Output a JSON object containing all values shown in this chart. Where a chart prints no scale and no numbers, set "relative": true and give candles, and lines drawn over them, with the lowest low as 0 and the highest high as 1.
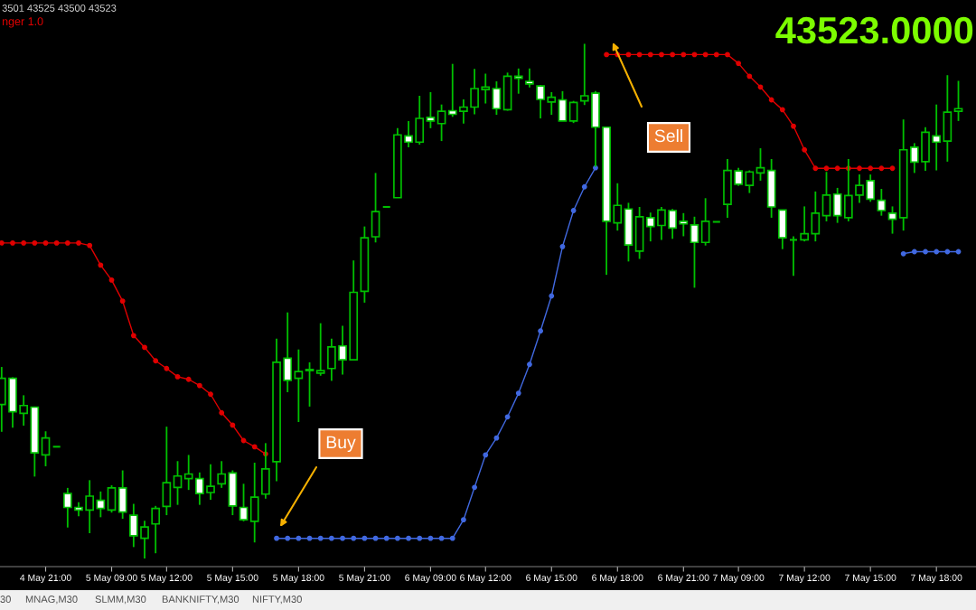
{
  "chart_data": {
    "type": "candlestick",
    "title": "3501 43525 43500 43523",
    "subtitle": "nger 1.0",
    "relative": true,
    "grid": false,
    "legend": false,
    "annotations": [
      "43523.0000",
      "Buy",
      "Sell",
      "30",
      "MNAG,M30",
      "SLMM,M30",
      "BANKNIFTY,M30",
      "NIFTY,M30"
    ],
    "categories": [
      null,
      null,
      null,
      null,
      "4 May 21:00",
      null,
      null,
      null,
      null,
      null,
      "5 May 09:00",
      null,
      null,
      null,
      null,
      "5 May 12:00",
      null,
      null,
      null,
      null,
      null,
      "5 May 15:00",
      null,
      null,
      null,
      null,
      null,
      "5 May 18:00",
      null,
      null,
      null,
      null,
      null,
      "5 May 21:00",
      null,
      null,
      null,
      null,
      null,
      "6 May 09:00",
      null,
      null,
      null,
      null,
      "6 May 12:00",
      null,
      null,
      null,
      null,
      null,
      "6 May 15:00",
      null,
      null,
      null,
      null,
      null,
      "6 May 18:00",
      null,
      null,
      null,
      null,
      null,
      "6 May 21:00",
      null,
      null,
      null,
      null,
      "7 May 09:00",
      null,
      null,
      null,
      null,
      null,
      "7 May 12:00",
      null,
      null,
      null,
      null,
      null,
      "7 May 15:00",
      null,
      null,
      null,
      null,
      null,
      "7 May 18:00",
      null,
      null
    ],
    "ohlc": [
      [
        0.299,
        0.372,
        0.246,
        0.35
      ],
      [
        0.35,
        0.352,
        0.254,
        0.285
      ],
      [
        0.282,
        0.317,
        0.258,
        0.297
      ],
      [
        0.294,
        0.295,
        0.159,
        0.205
      ],
      [
        0.201,
        0.247,
        0.179,
        0.234
      ],
      [
        0.217,
        0.217,
        0.217,
        0.217
      ],
      [
        0.126,
        0.137,
        0.06,
        0.099
      ],
      [
        0.099,
        0.109,
        0.082,
        0.094
      ],
      [
        0.094,
        0.152,
        0.049,
        0.121
      ],
      [
        0.113,
        0.13,
        0.08,
        0.097
      ],
      [
        0.094,
        0.142,
        0.089,
        0.137
      ],
      [
        0.137,
        0.171,
        0.077,
        0.09
      ],
      [
        0.084,
        0.106,
        0.022,
        0.044
      ],
      [
        0.039,
        0.073,
        0.0,
        0.061
      ],
      [
        0.067,
        0.102,
        0.01,
        0.097
      ],
      [
        0.101,
        0.256,
        0.084,
        0.147
      ],
      [
        0.138,
        0.189,
        0.104,
        0.16
      ],
      [
        0.155,
        0.201,
        0.133,
        0.164
      ],
      [
        0.155,
        0.167,
        0.104,
        0.126
      ],
      [
        0.128,
        0.183,
        0.114,
        0.14
      ],
      [
        0.145,
        0.189,
        0.137,
        0.164
      ],
      [
        0.166,
        0.171,
        0.084,
        0.102
      ],
      [
        0.099,
        0.145,
        0.072,
        0.075
      ],
      [
        0.072,
        0.186,
        0.031,
        0.119
      ],
      [
        0.125,
        0.224,
        0.116,
        0.174
      ],
      [
        0.188,
        0.427,
        0.15,
        0.381
      ],
      [
        0.389,
        0.478,
        0.323,
        0.346
      ],
      [
        0.35,
        0.406,
        0.265,
        0.363
      ],
      [
        0.367,
        0.381,
        0.295,
        0.365
      ],
      [
        0.36,
        0.457,
        0.355,
        0.365
      ],
      [
        0.369,
        0.427,
        0.345,
        0.411
      ],
      [
        0.413,
        0.452,
        0.357,
        0.386
      ],
      [
        0.386,
        0.579,
        0.386,
        0.517
      ],
      [
        0.519,
        0.645,
        0.497,
        0.623
      ],
      [
        0.625,
        0.749,
        0.614,
        0.674
      ],
      [
        0.683,
        0.683,
        0.683,
        0.683
      ],
      [
        0.701,
        0.836,
        0.701,
        0.823
      ],
      [
        0.821,
        0.85,
        0.799,
        0.809
      ],
      [
        0.809,
        0.899,
        0.804,
        0.855
      ],
      [
        0.857,
        0.906,
        0.836,
        0.85
      ],
      [
        0.845,
        0.882,
        0.811,
        0.869
      ],
      [
        0.87,
        0.961,
        0.858,
        0.863
      ],
      [
        0.869,
        0.892,
        0.845,
        0.877
      ],
      [
        0.877,
        0.951,
        0.863,
        0.913
      ],
      [
        0.911,
        0.942,
        0.884,
        0.916
      ],
      [
        0.913,
        0.927,
        0.862,
        0.874
      ],
      [
        0.872,
        0.944,
        0.87,
        0.937
      ],
      [
        0.937,
        0.952,
        0.903,
        0.933
      ],
      [
        0.927,
        0.952,
        0.915,
        0.922
      ],
      [
        0.918,
        0.92,
        0.855,
        0.892
      ],
      [
        0.887,
        0.906,
        0.862,
        0.896
      ],
      [
        0.891,
        0.908,
        0.85,
        0.85
      ],
      [
        0.85,
        0.889,
        0.846,
        0.886
      ],
      [
        0.889,
        1.0,
        0.881,
        0.899
      ],
      [
        0.904,
        0.908,
        0.761,
        0.838
      ],
      [
        0.838,
        0.838,
        0.551,
        0.655
      ],
      [
        0.652,
        0.729,
        0.637,
        0.686
      ],
      [
        0.679,
        0.691,
        0.577,
        0.609
      ],
      [
        0.597,
        0.683,
        0.582,
        0.664
      ],
      [
        0.662,
        0.672,
        0.616,
        0.645
      ],
      [
        0.647,
        0.683,
        0.619,
        0.677
      ],
      [
        0.676,
        0.679,
        0.621,
        0.642
      ],
      [
        0.655,
        0.671,
        0.626,
        0.65
      ],
      [
        0.648,
        0.664,
        0.526,
        0.614
      ],
      [
        0.614,
        0.7,
        0.608,
        0.655
      ],
      [
        0.654,
        0.654,
        0.654,
        0.654
      ],
      [
        0.688,
        0.776,
        0.662,
        0.754
      ],
      [
        0.753,
        0.759,
        0.724,
        0.727
      ],
      [
        0.725,
        0.754,
        0.71,
        0.751
      ],
      [
        0.749,
        0.797,
        0.734,
        0.759
      ],
      [
        0.754,
        0.776,
        0.662,
        0.683
      ],
      [
        0.677,
        0.677,
        0.601,
        0.623
      ],
      [
        0.619,
        0.626,
        0.549,
        0.619
      ],
      [
        0.619,
        0.684,
        0.616,
        0.631
      ],
      [
        0.631,
        0.713,
        0.616,
        0.671
      ],
      [
        0.666,
        0.751,
        0.655,
        0.706
      ],
      [
        0.708,
        0.72,
        0.652,
        0.666
      ],
      [
        0.662,
        0.776,
        0.655,
        0.705
      ],
      [
        0.706,
        0.746,
        0.691,
        0.725
      ],
      [
        0.734,
        0.746,
        0.693,
        0.698
      ],
      [
        0.696,
        0.718,
        0.666,
        0.676
      ],
      [
        0.671,
        0.684,
        0.631,
        0.659
      ],
      [
        0.662,
        0.853,
        0.637,
        0.794
      ],
      [
        0.799,
        0.807,
        0.749,
        0.77
      ],
      [
        0.771,
        0.838,
        0.753,
        0.828
      ],
      [
        0.821,
        0.882,
        0.754,
        0.809
      ],
      [
        0.811,
        0.939,
        0.771,
        0.867
      ],
      [
        0.869,
        0.928,
        0.85,
        0.874
      ]
    ],
    "series": [
      {
        "type": "line",
        "color": "#e00000",
        "marker": "circle",
        "line_style": "solid",
        "values": [
          0.613,
          0.613,
          0.613,
          0.613,
          0.613,
          0.613,
          0.613,
          0.613,
          0.608,
          0.57,
          0.541,
          0.5,
          0.433,
          0.41,
          0.384,
          0.369,
          0.353,
          0.348,
          0.336,
          0.319,
          0.283,
          0.259,
          0.229,
          0.217,
          0.203,
          null,
          null,
          null,
          null,
          null,
          null,
          null,
          null,
          null,
          null,
          null,
          null,
          null,
          null,
          null,
          null,
          null,
          null,
          null,
          null,
          null,
          null,
          null,
          null,
          null,
          null,
          null,
          null,
          null,
          null,
          0.979,
          0.979,
          0.979,
          0.979,
          0.979,
          0.979,
          0.979,
          0.979,
          0.979,
          0.979,
          0.979,
          0.979,
          0.962,
          0.937,
          0.916,
          0.891,
          0.872,
          0.84,
          0.794,
          0.758,
          0.758,
          0.758,
          0.758,
          0.758,
          0.758,
          0.758,
          0.758,
          null,
          null,
          null,
          null,
          null,
          null
        ]
      },
      {
        "type": "line",
        "color": "#4169e1",
        "marker": "circle",
        "line_style": "solid",
        "values": [
          null,
          null,
          null,
          null,
          null,
          null,
          null,
          null,
          null,
          null,
          null,
          null,
          null,
          null,
          null,
          null,
          null,
          null,
          null,
          null,
          null,
          null,
          null,
          null,
          null,
          0.039,
          0.039,
          0.039,
          0.039,
          0.039,
          0.039,
          0.039,
          0.039,
          0.039,
          0.039,
          0.039,
          0.039,
          0.039,
          0.039,
          0.039,
          0.039,
          0.039,
          0.075,
          0.138,
          0.201,
          0.234,
          0.275,
          0.321,
          0.377,
          0.442,
          0.51,
          0.606,
          0.676,
          0.722,
          0.759,
          null,
          null,
          null,
          null,
          null,
          null,
          null,
          null,
          null,
          null,
          null,
          null,
          null,
          null,
          null,
          null,
          null,
          null,
          null,
          null,
          null,
          null,
          null,
          null,
          null,
          null,
          null,
          0.592,
          0.596,
          0.596,
          0.596,
          0.596,
          0.596
        ]
      }
    ]
  }
}
